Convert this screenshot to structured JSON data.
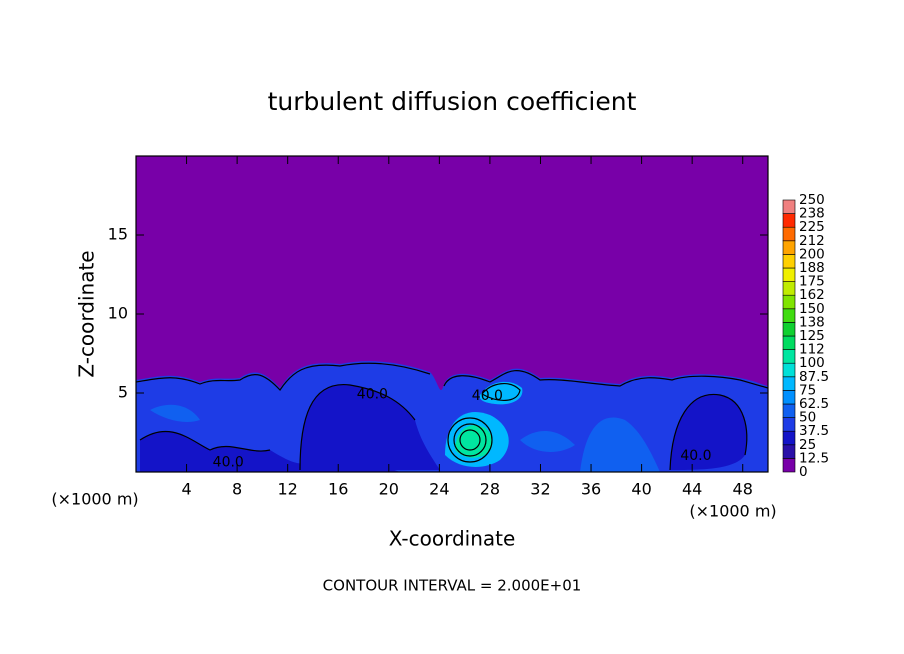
{
  "chart_data": {
    "type": "contour",
    "title": "turbulent diffusion coefficient",
    "xlabel": "X-coordinate",
    "ylabel": "Z-coordinate",
    "x_unit": "(×1000 m)",
    "footer": "CONTOUR INTERVAL = 2.000E+01",
    "xlim": [
      0,
      50
    ],
    "xticks": [
      4,
      8,
      12,
      16,
      20,
      24,
      28,
      32,
      36,
      40,
      44,
      48
    ],
    "ylim": [
      0,
      20
    ],
    "yticks": [
      5,
      10,
      15
    ],
    "annotations": [
      {
        "text": "40.0",
        "x": 7.3,
        "y": 0.6
      },
      {
        "text": "40.0",
        "x": 18.7,
        "y": 4.9
      },
      {
        "text": "40.0",
        "x": 27.8,
        "y": 4.8
      },
      {
        "text": "40.0",
        "x": 44.3,
        "y": 1.0
      }
    ],
    "colorbar": {
      "levels": [
        0,
        12.5,
        25,
        37.5,
        50,
        62.5,
        75,
        87.5,
        100,
        112,
        125,
        138,
        150,
        162,
        175,
        188,
        200,
        212,
        225,
        238,
        250
      ],
      "colors": [
        "#7800a8",
        "#2a10a8",
        "#1414c8",
        "#1e3ce6",
        "#1060f0",
        "#0090ff",
        "#00b8ff",
        "#00e0d8",
        "#00e6a0",
        "#00dc60",
        "#10d030",
        "#40dc10",
        "#80e400",
        "#c0ec00",
        "#f0f000",
        "#ffd000",
        "#ffa400",
        "#ff6a00",
        "#ff2a00",
        "#f08080"
      ]
    }
  }
}
